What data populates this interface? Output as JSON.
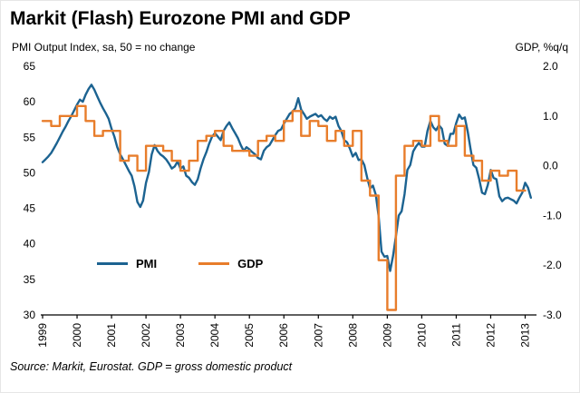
{
  "title": "Markit (Flash) Eurozone PMI and GDP",
  "subtitle_left": "PMI Output Index, sa, 50 = no change",
  "subtitle_right": "GDP, %q/q",
  "source": "Source: Markit, Eurostat. GDP = gross domestic product",
  "chart_data": {
    "type": "line",
    "title": "Markit (Flash) Eurozone PMI and GDP",
    "grid": false,
    "legend_position": "inside-lower-left",
    "x_range": [
      1999.0,
      2013.25
    ],
    "x_ticks": [
      1999,
      2000,
      2001,
      2002,
      2003,
      2004,
      2005,
      2006,
      2007,
      2008,
      2009,
      2010,
      2011,
      2012,
      2013
    ],
    "left_axis": {
      "label": "PMI Output Index, sa, 50 = no change",
      "min": 30,
      "max": 65,
      "ticks": [
        65,
        60,
        55,
        50,
        45,
        40,
        35,
        30
      ]
    },
    "right_axis": {
      "label": "GDP, %q/q",
      "min": -3.0,
      "max": 2.0,
      "ticks": [
        2.0,
        1.0,
        0.0,
        -1.0,
        -2.0,
        -3.0
      ]
    },
    "series": [
      {
        "name": "PMI",
        "axis": "left",
        "style": "line",
        "color": "#1c6391",
        "x_start": 1999.0,
        "x_step": 0.083333,
        "values": [
          51.5,
          51.9,
          52.3,
          52.8,
          53.5,
          54.2,
          55.0,
          55.8,
          56.5,
          57.3,
          58.0,
          58.8,
          59.6,
          60.3,
          60.0,
          61.0,
          61.8,
          62.4,
          61.7,
          60.8,
          59.9,
          59.1,
          58.4,
          57.6,
          56.2,
          55.1,
          53.6,
          52.6,
          51.9,
          51.1,
          50.3,
          49.6,
          48.1,
          45.9,
          45.2,
          46.1,
          48.6,
          50.1,
          52.6,
          53.9,
          53.1,
          52.6,
          52.3,
          51.9,
          51.3,
          50.6,
          50.9,
          51.6,
          50.6,
          50.9,
          49.6,
          49.3,
          48.7,
          48.3,
          49.1,
          50.6,
          51.9,
          52.9,
          54.1,
          55.1,
          55.6,
          55.1,
          54.6,
          55.9,
          56.6,
          57.1,
          56.3,
          55.6,
          54.9,
          53.9,
          53.1,
          53.6,
          53.3,
          52.9,
          52.6,
          52.1,
          51.9,
          53.1,
          53.6,
          53.9,
          54.6,
          55.3,
          55.9,
          56.1,
          56.9,
          57.6,
          58.3,
          58.6,
          59.1,
          60.5,
          58.9,
          58.3,
          57.6,
          57.9,
          58.1,
          58.3,
          57.9,
          58.1,
          57.6,
          57.3,
          57.9,
          57.6,
          57.9,
          56.6,
          55.9,
          54.6,
          54.3,
          53.4,
          52.3,
          52.8,
          51.8,
          51.9,
          51.1,
          49.3,
          47.8,
          48.2,
          46.9,
          43.9,
          38.9,
          38.2,
          38.3,
          36.2,
          38.3,
          41.1,
          44.0,
          44.6,
          47.0,
          50.4,
          51.1,
          53.0,
          53.7,
          54.2,
          53.7,
          53.7,
          55.9,
          57.3,
          56.4,
          56.0,
          56.7,
          56.2,
          54.1,
          53.8,
          55.5,
          55.5,
          57.0,
          58.2,
          57.6,
          57.8,
          55.8,
          53.3,
          51.1,
          50.7,
          49.1,
          47.2,
          47.0,
          48.3,
          50.4,
          49.3,
          49.1,
          46.7,
          46.0,
          46.4,
          46.5,
          46.3,
          46.1,
          45.7,
          46.5,
          47.2,
          48.6,
          47.9,
          46.5
        ]
      },
      {
        "name": "GDP",
        "axis": "right",
        "style": "step",
        "color": "#e87d2b",
        "x_start": 1999.0,
        "x_step": 0.25,
        "values": [
          0.9,
          0.8,
          1.0,
          1.0,
          1.2,
          0.9,
          0.6,
          0.7,
          0.7,
          0.1,
          0.2,
          -0.1,
          0.4,
          0.4,
          0.3,
          0.1,
          -0.1,
          0.1,
          0.5,
          0.6,
          0.7,
          0.4,
          0.3,
          0.3,
          0.2,
          0.5,
          0.6,
          0.5,
          0.9,
          1.1,
          0.6,
          0.9,
          0.8,
          0.5,
          0.7,
          0.4,
          0.7,
          -0.3,
          -0.6,
          -1.9,
          -2.9,
          -0.2,
          0.4,
          0.5,
          0.4,
          1.0,
          0.5,
          0.4,
          0.8,
          0.2,
          0.1,
          -0.3,
          -0.1,
          -0.2,
          -0.1,
          -0.5
        ]
      }
    ]
  }
}
